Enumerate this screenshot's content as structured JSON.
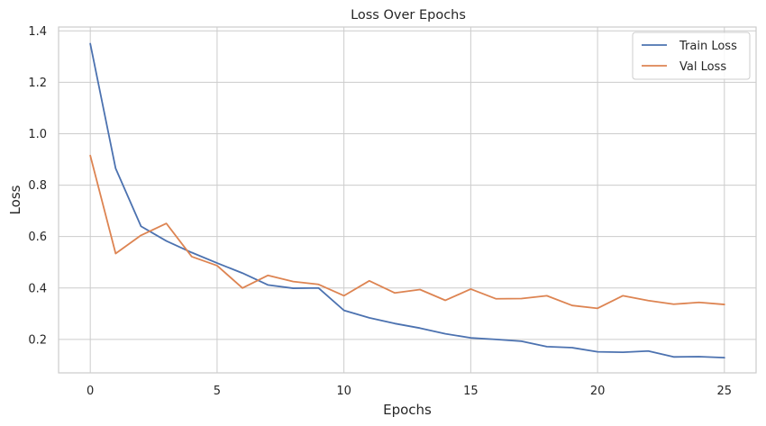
{
  "chart_data": {
    "type": "line",
    "title": "Loss Over Epochs",
    "xlabel": "Epochs",
    "ylabel": "Loss",
    "xlim": [
      -1.25,
      26.25
    ],
    "ylim": [
      0.07,
      1.415
    ],
    "xticks": [
      0,
      5,
      10,
      15,
      20,
      25
    ],
    "xtick_labels": [
      "0",
      "5",
      "10",
      "15",
      "20",
      "25"
    ],
    "yticks": [
      0.2,
      0.4,
      0.6,
      0.8,
      1.0,
      1.2,
      1.4
    ],
    "ytick_labels": [
      "0.2",
      "0.4",
      "0.6",
      "0.8",
      "1.0",
      "1.2",
      "1.4"
    ],
    "grid": true,
    "legend_position": "top-right",
    "x": [
      0,
      1,
      2,
      3,
      4,
      5,
      6,
      7,
      8,
      9,
      10,
      11,
      12,
      13,
      14,
      15,
      16,
      17,
      18,
      19,
      20,
      21,
      22,
      23,
      24,
      25
    ],
    "series": [
      {
        "name": "Train Loss",
        "color": "#4c72b0",
        "values": [
          1.35,
          0.865,
          0.64,
          0.583,
          0.538,
          0.497,
          0.458,
          0.412,
          0.399,
          0.4,
          0.313,
          0.284,
          0.262,
          0.244,
          0.222,
          0.206,
          0.2,
          0.193,
          0.172,
          0.168,
          0.152,
          0.15,
          0.155,
          0.132,
          0.133,
          0.129
        ]
      },
      {
        "name": "Val Loss",
        "color": "#dd8452",
        "values": [
          0.915,
          0.534,
          0.605,
          0.651,
          0.522,
          0.487,
          0.4,
          0.449,
          0.425,
          0.414,
          0.37,
          0.428,
          0.381,
          0.394,
          0.352,
          0.396,
          0.358,
          0.359,
          0.37,
          0.332,
          0.321,
          0.37,
          0.351,
          0.337,
          0.344,
          0.336
        ]
      }
    ]
  }
}
